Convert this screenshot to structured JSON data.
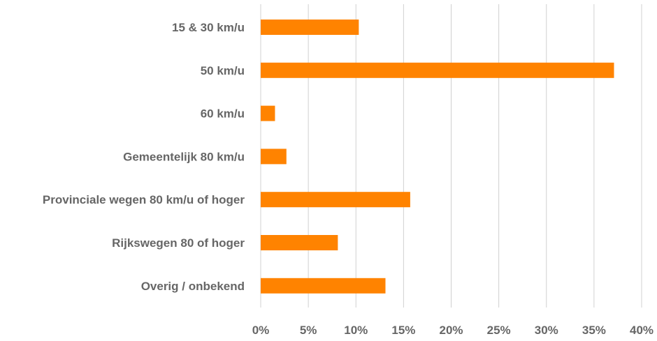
{
  "chart_data": {
    "type": "bar",
    "orientation": "horizontal",
    "categories": [
      "15 & 30 km/u",
      "50 km/u",
      "60 km/u",
      "Gemeentelijk 80 km/u",
      "Provinciale wegen 80 km/u of hoger",
      "Rijkswegen 80 of hoger",
      "Overig / onbekend"
    ],
    "values": [
      10.3,
      37.1,
      1.5,
      2.7,
      15.7,
      8.1,
      13.1
    ],
    "value_unit": "%",
    "xlim": [
      0,
      40
    ],
    "x_ticks": [
      0,
      5,
      10,
      15,
      20,
      25,
      30,
      35,
      40
    ],
    "x_tick_labels": [
      "0%",
      "5%",
      "10%",
      "15%",
      "20%",
      "25%",
      "30%",
      "35%",
      "40%"
    ],
    "title": "",
    "xlabel": "",
    "ylabel": "",
    "grid": "vertical",
    "legend": "none",
    "colors": {
      "bar": "#FF8300",
      "grid": "#D0D0D0",
      "text": "#666666"
    }
  }
}
